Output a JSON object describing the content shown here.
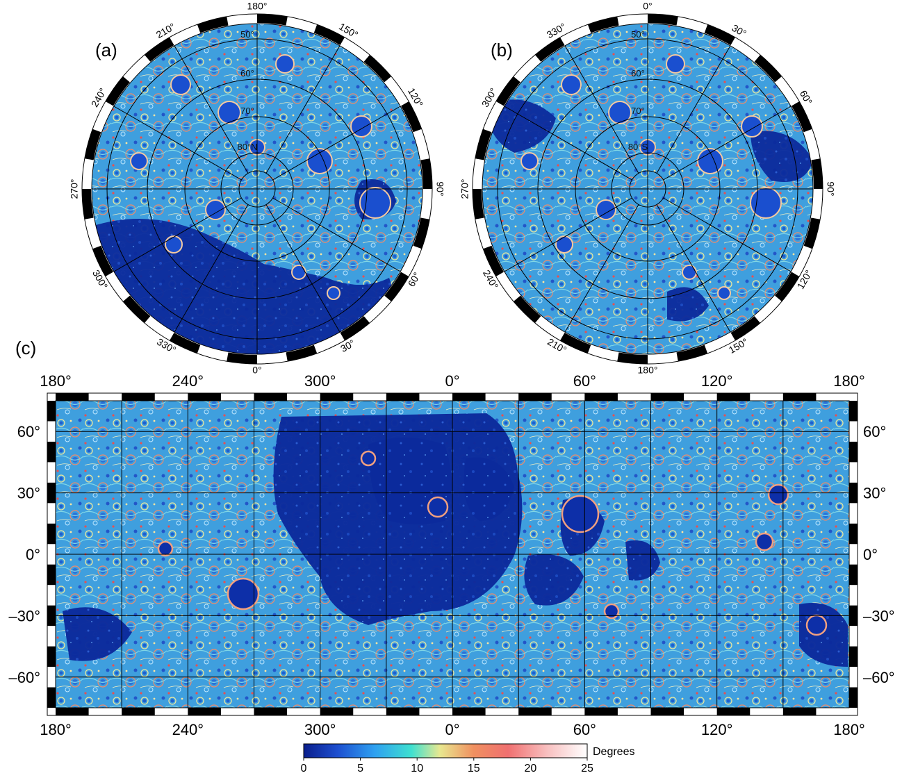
{
  "panels": {
    "a": {
      "label": "(a)",
      "lon_labels": [
        "180°",
        "150°",
        "120°",
        "90°",
        "60°",
        "30°",
        "0°",
        "330°",
        "300°",
        "270°",
        "240°",
        "210°"
      ],
      "lat_labels": [
        "50°",
        "60°",
        "70°",
        "80°N"
      ]
    },
    "b": {
      "label": "(b)",
      "lon_labels": [
        "0°",
        "30°",
        "60°",
        "90°",
        "120°",
        "150°",
        "180°",
        "210°",
        "240°",
        "270°",
        "300°",
        "330°"
      ],
      "lat_labels": [
        "50°",
        "60°",
        "70°",
        "80°S"
      ]
    },
    "c": {
      "label": "(c)",
      "lon_labels": [
        "180°",
        "240°",
        "300°",
        "0°",
        "60°",
        "120°",
        "180°"
      ],
      "lat_labels": [
        "60°",
        "30°",
        "0°",
        "–30°",
        "–60°"
      ]
    }
  },
  "colorbar": {
    "title": "Degrees",
    "ticks": [
      "0",
      "5",
      "10",
      "15",
      "20",
      "25"
    ],
    "range": [
      0,
      25
    ],
    "colors": [
      "#0a1e8c",
      "#1d4fd0",
      "#2fa0f0",
      "#3fe0d0",
      "#e8e890",
      "#f09060",
      "#f07070",
      "#f8c0c0",
      "#ffffff"
    ]
  }
}
